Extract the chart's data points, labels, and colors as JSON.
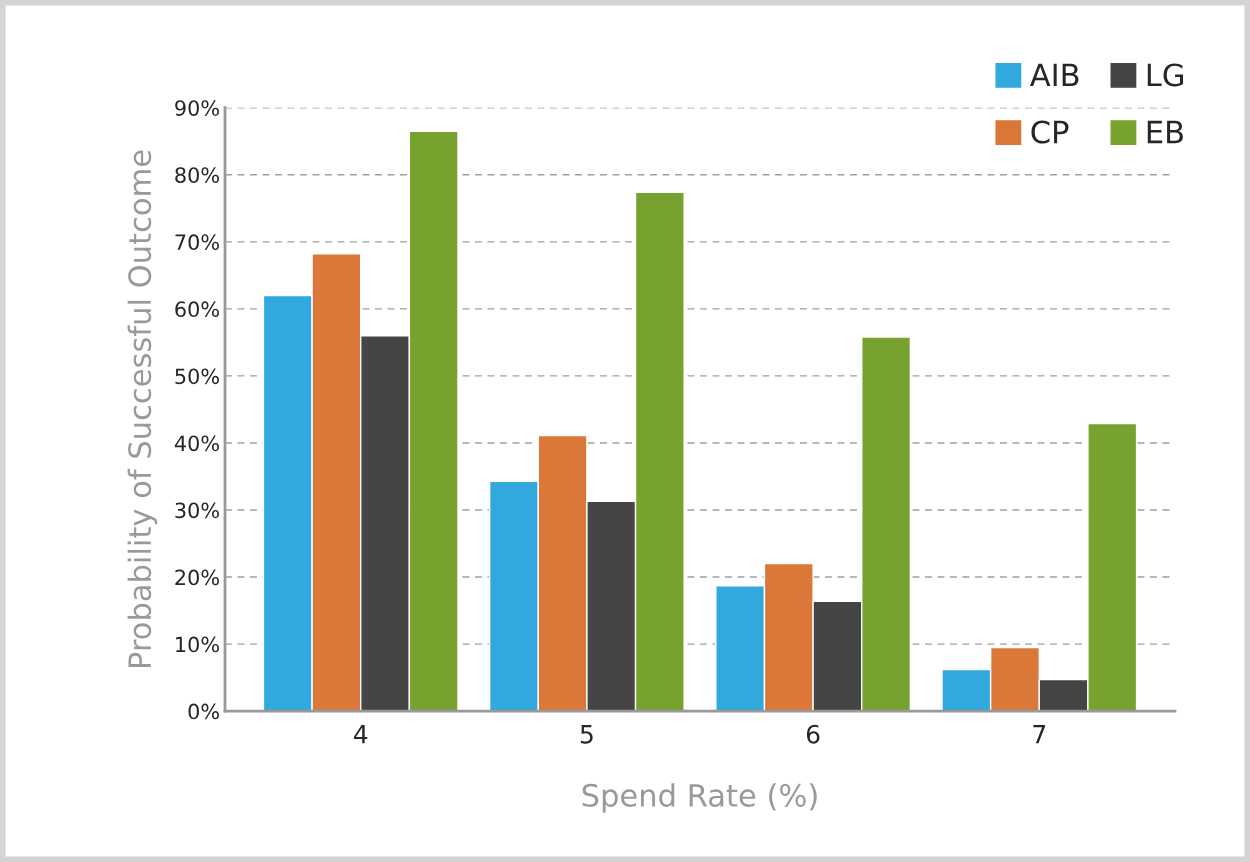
{
  "chart_data": {
    "type": "bar",
    "xlabel": "Spend Rate (%)",
    "ylabel": "Probability of Successful Outcome",
    "categories": [
      "4",
      "5",
      "6",
      "7"
    ],
    "series": [
      {
        "name": "AIB",
        "color": "#31a9de",
        "values": [
          62.0,
          34.3,
          18.7,
          6.2
        ]
      },
      {
        "name": "CP",
        "color": "#dc773a",
        "values": [
          68.2,
          41.1,
          22.0,
          9.5
        ]
      },
      {
        "name": "LG",
        "color": "#454545",
        "values": [
          56.0,
          31.3,
          16.4,
          4.7
        ]
      },
      {
        "name": "EB",
        "color": "#78a22f",
        "values": [
          86.5,
          77.4,
          55.8,
          42.9
        ]
      }
    ],
    "ylim": [
      0,
      90
    ],
    "yticks": [
      {
        "value": 0,
        "label": "0%"
      },
      {
        "value": 10,
        "label": "10%"
      },
      {
        "value": 20,
        "label": "20%"
      },
      {
        "value": 30,
        "label": "30%"
      },
      {
        "value": 40,
        "label": "40%"
      },
      {
        "value": 50,
        "label": "50%"
      },
      {
        "value": 60,
        "label": "60%"
      },
      {
        "value": 70,
        "label": "70%"
      },
      {
        "value": 80,
        "label": "80%"
      },
      {
        "value": 90,
        "label": "90%"
      }
    ],
    "grid": "y",
    "legend": "top right"
  }
}
